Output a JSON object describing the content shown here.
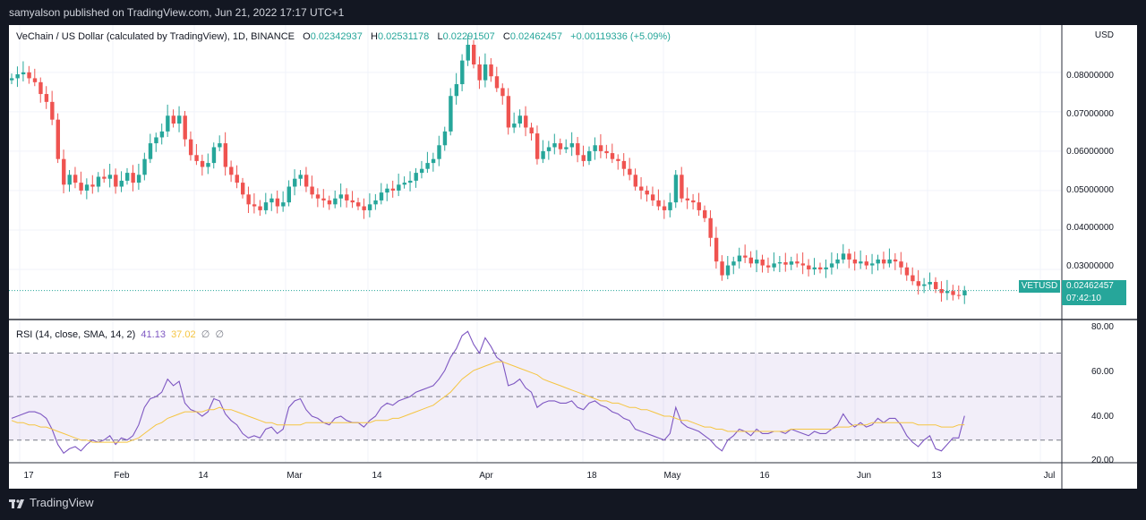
{
  "header": {
    "publisher": "samyalson published on TradingView.com, Jun 21, 2022 17:17 UTC+1"
  },
  "legend": {
    "title": "VeChain / US Dollar (calculated by TradingView), 1D, BINANCE",
    "open_label": "O",
    "open": "0.02342937",
    "high_label": "H",
    "high": "0.02531178",
    "low_label": "L",
    "low": "0.02291507",
    "close_label": "C",
    "close": "0.02462457",
    "change": "+0.00119336 (+5.09%)"
  },
  "price_axis": {
    "currency": "USD",
    "ticks": [
      "0.08000000",
      "0.07000000",
      "0.06000000",
      "0.05000000",
      "0.04000000",
      "0.03000000"
    ]
  },
  "last_price": {
    "symbol": "VETUSD",
    "price": "0.02462457",
    "countdown": "07:42:10"
  },
  "rsi_panel": {
    "label": "RSI (14, close, SMA, 14, 2)",
    "rsi_value": "41.13",
    "sma_value": "37.02",
    "na1": "∅",
    "na2": "∅",
    "ticks": [
      "80.00",
      "60.00",
      "40.00",
      "20.00"
    ]
  },
  "time_axis": [
    "17",
    "Feb",
    "14",
    "Mar",
    "14",
    "Apr",
    "18",
    "May",
    "16",
    "Jun",
    "13",
    "Jul"
  ],
  "footer": {
    "brand": "TradingView"
  },
  "colors": {
    "up": "#26a69a",
    "down": "#ef5350",
    "rsi": "#7e57c2",
    "sma": "#f5c542",
    "band": "#7e57c2"
  },
  "chart_data": [
    {
      "type": "candlestick",
      "title": "VeChain / US Dollar (calculated by TradingView), 1D, BINANCE",
      "ylabel": "USD",
      "ylim": [
        0.0175,
        0.092
      ],
      "yticks": [
        0.03,
        0.04,
        0.05,
        0.06,
        0.07,
        0.08
      ],
      "x_start": "2022-01-09",
      "x_end": "2022-06-21",
      "interval": "1D",
      "last_close": 0.02462457,
      "close": [
        0.0785,
        0.0795,
        0.08,
        0.0785,
        0.0775,
        0.0745,
        0.0725,
        0.068,
        0.058,
        0.0515,
        0.054,
        0.052,
        0.05,
        0.0515,
        0.051,
        0.0535,
        0.053,
        0.054,
        0.051,
        0.0525,
        0.0545,
        0.052,
        0.054,
        0.058,
        0.062,
        0.0635,
        0.065,
        0.069,
        0.067,
        0.069,
        0.063,
        0.059,
        0.0575,
        0.056,
        0.057,
        0.061,
        0.062,
        0.056,
        0.054,
        0.052,
        0.049,
        0.0465,
        0.046,
        0.045,
        0.047,
        0.048,
        0.046,
        0.047,
        0.051,
        0.053,
        0.054,
        0.051,
        0.049,
        0.048,
        0.0475,
        0.0465,
        0.048,
        0.049,
        0.0475,
        0.047,
        0.046,
        0.045,
        0.0465,
        0.0475,
        0.0495,
        0.0505,
        0.05,
        0.0515,
        0.052,
        0.0525,
        0.0545,
        0.0555,
        0.057,
        0.058,
        0.0615,
        0.065,
        0.074,
        0.077,
        0.083,
        0.087,
        0.082,
        0.078,
        0.082,
        0.079,
        0.076,
        0.074,
        0.066,
        0.067,
        0.069,
        0.066,
        0.0645,
        0.058,
        0.06,
        0.061,
        0.062,
        0.0605,
        0.061,
        0.062,
        0.059,
        0.0575,
        0.06,
        0.0615,
        0.06,
        0.0595,
        0.058,
        0.0575,
        0.0555,
        0.054,
        0.051,
        0.05,
        0.049,
        0.0475,
        0.046,
        0.045,
        0.047,
        0.054,
        0.048,
        0.0475,
        0.047,
        0.045,
        0.043,
        0.038,
        0.032,
        0.0285,
        0.031,
        0.032,
        0.0335,
        0.033,
        0.0315,
        0.0325,
        0.031,
        0.0305,
        0.0315,
        0.0318,
        0.0312,
        0.032,
        0.0315,
        0.031,
        0.03,
        0.0305,
        0.03,
        0.0305,
        0.0315,
        0.0325,
        0.034,
        0.0325,
        0.0315,
        0.032,
        0.031,
        0.0315,
        0.0325,
        0.0315,
        0.0325,
        0.032,
        0.0305,
        0.0285,
        0.027,
        0.0258,
        0.0262,
        0.0268,
        0.025,
        0.024,
        0.0245,
        0.0235,
        0.0234,
        0.0246
      ],
      "price_line": 0.02462457
    },
    {
      "type": "line",
      "title": "RSI (14, close, SMA, 14, 2)",
      "ylim": [
        20,
        85
      ],
      "yticks": [
        20,
        40,
        60,
        80
      ],
      "bands": {
        "upper": 70,
        "middle": 50,
        "lower": 30
      },
      "series": [
        {
          "name": "RSI",
          "last": 41.13,
          "values": [
            40,
            41,
            42,
            43,
            43,
            42,
            40,
            35,
            28,
            24,
            26,
            27,
            25,
            28,
            30,
            29,
            30,
            32,
            28,
            31,
            30,
            32,
            37,
            45,
            49,
            50,
            52,
            58,
            55,
            57,
            47,
            44,
            43,
            41,
            43,
            49,
            48,
            42,
            39,
            37,
            33,
            31,
            32,
            31,
            35,
            36,
            33,
            35,
            45,
            48,
            49,
            44,
            41,
            40,
            38,
            37,
            40,
            41,
            39,
            38,
            38,
            36,
            39,
            41,
            45,
            47,
            46,
            48,
            49,
            50,
            52,
            53,
            54,
            55,
            58,
            62,
            68,
            72,
            78,
            80,
            74,
            70,
            77,
            73,
            68,
            66,
            55,
            56,
            58,
            54,
            52,
            45,
            47,
            48,
            48,
            47,
            47,
            48,
            45,
            44,
            47,
            48,
            46,
            45,
            43,
            42,
            40,
            39,
            35,
            34,
            33,
            32,
            31,
            30,
            33,
            45,
            38,
            36,
            35,
            34,
            32,
            30,
            27,
            25,
            30,
            32,
            35,
            34,
            32,
            35,
            33,
            33,
            34,
            34,
            33,
            35,
            34,
            33,
            32,
            34,
            33,
            33,
            35,
            37,
            42,
            38,
            36,
            38,
            36,
            37,
            40,
            38,
            40,
            40,
            37,
            32,
            29,
            27,
            30,
            32,
            26,
            25,
            28,
            31,
            31,
            41.13
          ]
        },
        {
          "name": "SMA",
          "last": 37.02,
          "values": [
            39,
            38,
            38,
            37,
            37,
            36,
            36,
            35,
            34,
            33,
            32,
            31,
            30,
            30,
            29,
            29,
            29,
            29,
            29,
            29,
            29,
            30,
            31,
            33,
            35,
            37,
            38,
            40,
            41,
            42,
            43,
            43,
            43,
            43,
            44,
            44,
            45,
            44,
            44,
            43,
            42,
            41,
            40,
            39,
            38,
            38,
            37,
            37,
            37,
            37,
            37,
            38,
            38,
            38,
            38,
            38,
            38,
            38,
            38,
            38,
            38,
            38,
            38,
            39,
            39,
            39,
            40,
            40,
            41,
            42,
            43,
            44,
            45,
            46,
            48,
            50,
            52,
            55,
            58,
            60,
            62,
            63,
            64,
            65,
            66,
            66,
            65,
            64,
            63,
            62,
            61,
            60,
            58,
            57,
            56,
            55,
            54,
            53,
            52,
            51,
            50,
            49,
            48,
            48,
            47,
            47,
            46,
            45,
            45,
            44,
            44,
            43,
            42,
            41,
            41,
            40,
            39,
            39,
            38,
            37,
            36,
            36,
            35,
            35,
            34,
            34,
            34,
            34,
            34,
            34,
            34,
            34,
            34,
            34,
            34,
            35,
            35,
            35,
            35,
            35,
            35,
            35,
            35,
            36,
            36,
            36,
            37,
            37,
            37,
            38,
            38,
            38,
            38,
            38,
            38,
            38,
            38,
            37,
            37,
            37,
            37,
            36,
            36,
            36,
            37,
            37.02
          ]
        }
      ]
    }
  ]
}
